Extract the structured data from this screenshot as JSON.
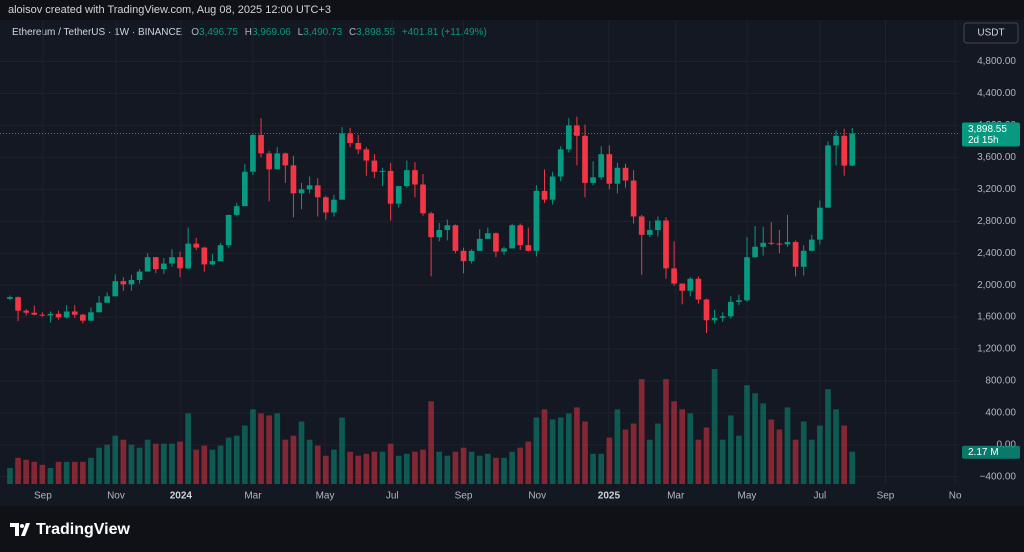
{
  "chart_data": {
    "type": "candlestick",
    "credit": "aloisov created with TradingView.com, Aug 08, 2025 12:00 UTC+3",
    "symbol": "Ethereum / TetherUS · 1W · BINANCE",
    "legend": [
      {
        "key": "O",
        "text": "3,496.75"
      },
      {
        "key": "H",
        "text": "3,969.06"
      },
      {
        "key": "L",
        "text": "3,490.73"
      },
      {
        "key": "C",
        "text": "3,898.55"
      }
    ],
    "change": "+401.81 (+11.49%)",
    "currency": "USDT",
    "last_price_label": "3,898.55",
    "countdown": "2d 15h",
    "volume_label": "2.17 M",
    "brand": "TradingView",
    "up_color": "#089981",
    "down_color": "#f23645",
    "grid": true,
    "open": [
      1828,
      1850,
      1680,
      1655,
      1630,
      1620,
      1640,
      1595,
      1670,
      1630,
      1555,
      1660,
      1780,
      1860,
      2050,
      2010,
      2065,
      2170,
      2350,
      2200,
      2270,
      2350,
      2210,
      2520,
      2470,
      2260,
      2300,
      2500,
      2880,
      2990,
      3420,
      3880,
      3650,
      3450,
      3650,
      3500,
      3150,
      3200,
      3250,
      3100,
      2910,
      3070,
      3900,
      3780,
      3700,
      3560,
      3420,
      3430,
      3020,
      3240,
      3440,
      3260,
      2900,
      2600,
      2690,
      2750,
      2430,
      2300,
      2430,
      2580,
      2650,
      2420,
      2460,
      2750,
      2500,
      2430,
      3180,
      3070,
      3360,
      3700,
      4000,
      3870,
      3280,
      3350,
      3640,
      3270,
      3470,
      3310,
      2860,
      2630,
      2690,
      2810,
      2210,
      2020,
      1930,
      2080,
      1820,
      1560,
      1590,
      1610,
      1790,
      1810,
      2350,
      2480,
      2530,
      2520,
      2510,
      2540,
      2230,
      2430,
      2570,
      2970,
      3750,
      3870,
      3496.75
    ],
    "high": [
      1870,
      1860,
      1700,
      1745,
      1660,
      1670,
      1680,
      1750,
      1750,
      1640,
      1720,
      1865,
      1910,
      2135,
      2100,
      2130,
      2200,
      2400,
      2355,
      2340,
      2450,
      2420,
      2720,
      2590,
      2480,
      2390,
      2530,
      2880,
      3030,
      3520,
      3900,
      4090,
      3680,
      3730,
      3660,
      3620,
      3280,
      3360,
      3340,
      3120,
      3130,
      3980,
      3970,
      3880,
      3730,
      3640,
      3470,
      3530,
      3240,
      3560,
      3540,
      3390,
      2920,
      2780,
      2820,
      2760,
      2470,
      2450,
      2700,
      2720,
      2660,
      2480,
      2770,
      2770,
      2720,
      3250,
      3450,
      3420,
      3740,
      4090,
      4110,
      4010,
      3550,
      3740,
      3750,
      3530,
      3520,
      3440,
      2880,
      2800,
      2860,
      2850,
      2550,
      2020,
      2100,
      2110,
      1830,
      1690,
      1660,
      1860,
      1880,
      2600,
      2740,
      2730,
      2790,
      2690,
      2880,
      2560,
      2500,
      2630,
      3060,
      3800,
      3940,
      3960,
      3969.06
    ],
    "low": [
      1810,
      1550,
      1620,
      1620,
      1605,
      1530,
      1570,
      1580,
      1590,
      1520,
      1555,
      1660,
      1780,
      1860,
      1930,
      1930,
      2020,
      2170,
      2150,
      2140,
      2230,
      2100,
      2200,
      2440,
      2170,
      2250,
      2300,
      2470,
      2860,
      2990,
      3380,
      3600,
      3050,
      3450,
      3280,
      2850,
      2950,
      3150,
      2860,
      2820,
      2860,
      3070,
      3730,
      3640,
      3370,
      3340,
      3240,
      2810,
      2970,
      3220,
      3100,
      2870,
      2110,
      2550,
      2560,
      2400,
      2150,
      2270,
      2430,
      2580,
      2350,
      2380,
      2460,
      2440,
      2420,
      2360,
      3030,
      3010,
      3300,
      3660,
      3500,
      3100,
      3250,
      3320,
      3200,
      3150,
      3220,
      2770,
      2130,
      2600,
      2610,
      2080,
      1990,
      1760,
      1860,
      1770,
      1400,
      1520,
      1540,
      1580,
      1750,
      1790,
      2340,
      2370,
      2500,
      2400,
      2480,
      2110,
      2120,
      2420,
      2510,
      2970,
      3500,
      3370,
      3490.73
    ],
    "close": [
      1850,
      1680,
      1655,
      1630,
      1620,
      1640,
      1595,
      1670,
      1630,
      1555,
      1660,
      1780,
      1860,
      2050,
      2010,
      2065,
      2170,
      2350,
      2200,
      2270,
      2350,
      2210,
      2520,
      2470,
      2260,
      2300,
      2500,
      2880,
      2990,
      3420,
      3880,
      3650,
      3450,
      3650,
      3500,
      3150,
      3200,
      3250,
      3100,
      2910,
      3070,
      3900,
      3780,
      3700,
      3560,
      3420,
      3430,
      3020,
      3240,
      3440,
      3260,
      2900,
      2600,
      2690,
      2750,
      2430,
      2300,
      2430,
      2580,
      2650,
      2420,
      2460,
      2750,
      2500,
      2430,
      3180,
      3070,
      3360,
      3700,
      4000,
      3870,
      3280,
      3350,
      3640,
      3270,
      3470,
      3310,
      2860,
      2630,
      2690,
      2810,
      2210,
      2020,
      1930,
      2080,
      1820,
      1560,
      1590,
      1610,
      1790,
      1810,
      2350,
      2480,
      2530,
      2520,
      2510,
      2540,
      2230,
      2430,
      2570,
      2970,
      3750,
      3870,
      3496.75,
      3898.55
    ],
    "volume": [
      1.08,
      1.76,
      1.63,
      1.49,
      1.29,
      1.08,
      1.49,
      1.49,
      1.49,
      1.49,
      1.76,
      2.44,
      2.64,
      3.25,
      2.98,
      2.64,
      2.44,
      2.98,
      2.71,
      2.71,
      2.71,
      2.85,
      4.75,
      2.31,
      2.58,
      2.31,
      2.58,
      3.12,
      3.25,
      3.93,
      5.02,
      4.75,
      4.61,
      4.75,
      2.98,
      3.25,
      4.2,
      2.98,
      2.58,
      1.9,
      2.31,
      4.47,
      2.17,
      1.9,
      2.03,
      2.17,
      2.17,
      2.71,
      1.9,
      2.03,
      2.17,
      2.31,
      5.56,
      2.17,
      1.9,
      2.17,
      2.44,
      2.17,
      1.9,
      2.03,
      1.76,
      1.76,
      2.17,
      2.44,
      2.85,
      4.47,
      5.02,
      4.34,
      4.47,
      4.75,
      5.15,
      4.2,
      2.03,
      2.03,
      3.12,
      5.02,
      3.66,
      4.07,
      7.05,
      2.98,
      4.07,
      7.05,
      5.56,
      5.02,
      4.75,
      2.98,
      3.8,
      7.73,
      2.98,
      4.61,
      3.25,
      6.64,
      6.1,
      5.42,
      4.34,
      3.66,
      5.15,
      2.98,
      4.2,
      2.98,
      3.93,
      6.37,
      5.02,
      3.93,
      2.17
    ],
    "xlim": [
      -1.23,
      117.3
    ],
    "xticks": [
      {
        "value": 4.07,
        "label": "Sep"
      },
      {
        "value": 13.09,
        "label": "Nov"
      },
      {
        "value": 21.1,
        "label": "2024"
      },
      {
        "value": 30.0,
        "label": "Mar"
      },
      {
        "value": 38.9,
        "label": "May"
      },
      {
        "value": 47.2,
        "label": "Jul"
      },
      {
        "value": 56.0,
        "label": "Sep"
      },
      {
        "value": 65.1,
        "label": "Nov"
      },
      {
        "value": 73.95,
        "label": "2025"
      },
      {
        "value": 82.2,
        "label": "Mar"
      },
      {
        "value": 91.0,
        "label": "May"
      },
      {
        "value": 100.0,
        "label": "Jul"
      },
      {
        "value": 108.1,
        "label": "Sep"
      },
      {
        "value": 116.7,
        "label": "No"
      }
    ],
    "ylim": [
      -490,
      5320
    ],
    "yticks": [
      {
        "value": 4800,
        "label": "4,800.00"
      },
      {
        "value": 4400,
        "label": "4,400.00"
      },
      {
        "value": 4000,
        "label": "4,000.00"
      },
      {
        "value": 3600,
        "label": "3,600.00"
      },
      {
        "value": 3200,
        "label": "3,200.00"
      },
      {
        "value": 2800,
        "label": "2,800.00"
      },
      {
        "value": 2400,
        "label": "2,400.00"
      },
      {
        "value": 2000,
        "label": "2,000.00"
      },
      {
        "value": 1600,
        "label": "1,600.00"
      },
      {
        "value": 1200,
        "label": "1,200.00"
      },
      {
        "value": 800,
        "label": "800.00"
      },
      {
        "value": 400,
        "label": "400.00"
      },
      {
        "value": 0,
        "label": "0.00"
      },
      {
        "value": -400,
        "label": "−400.00"
      }
    ]
  }
}
